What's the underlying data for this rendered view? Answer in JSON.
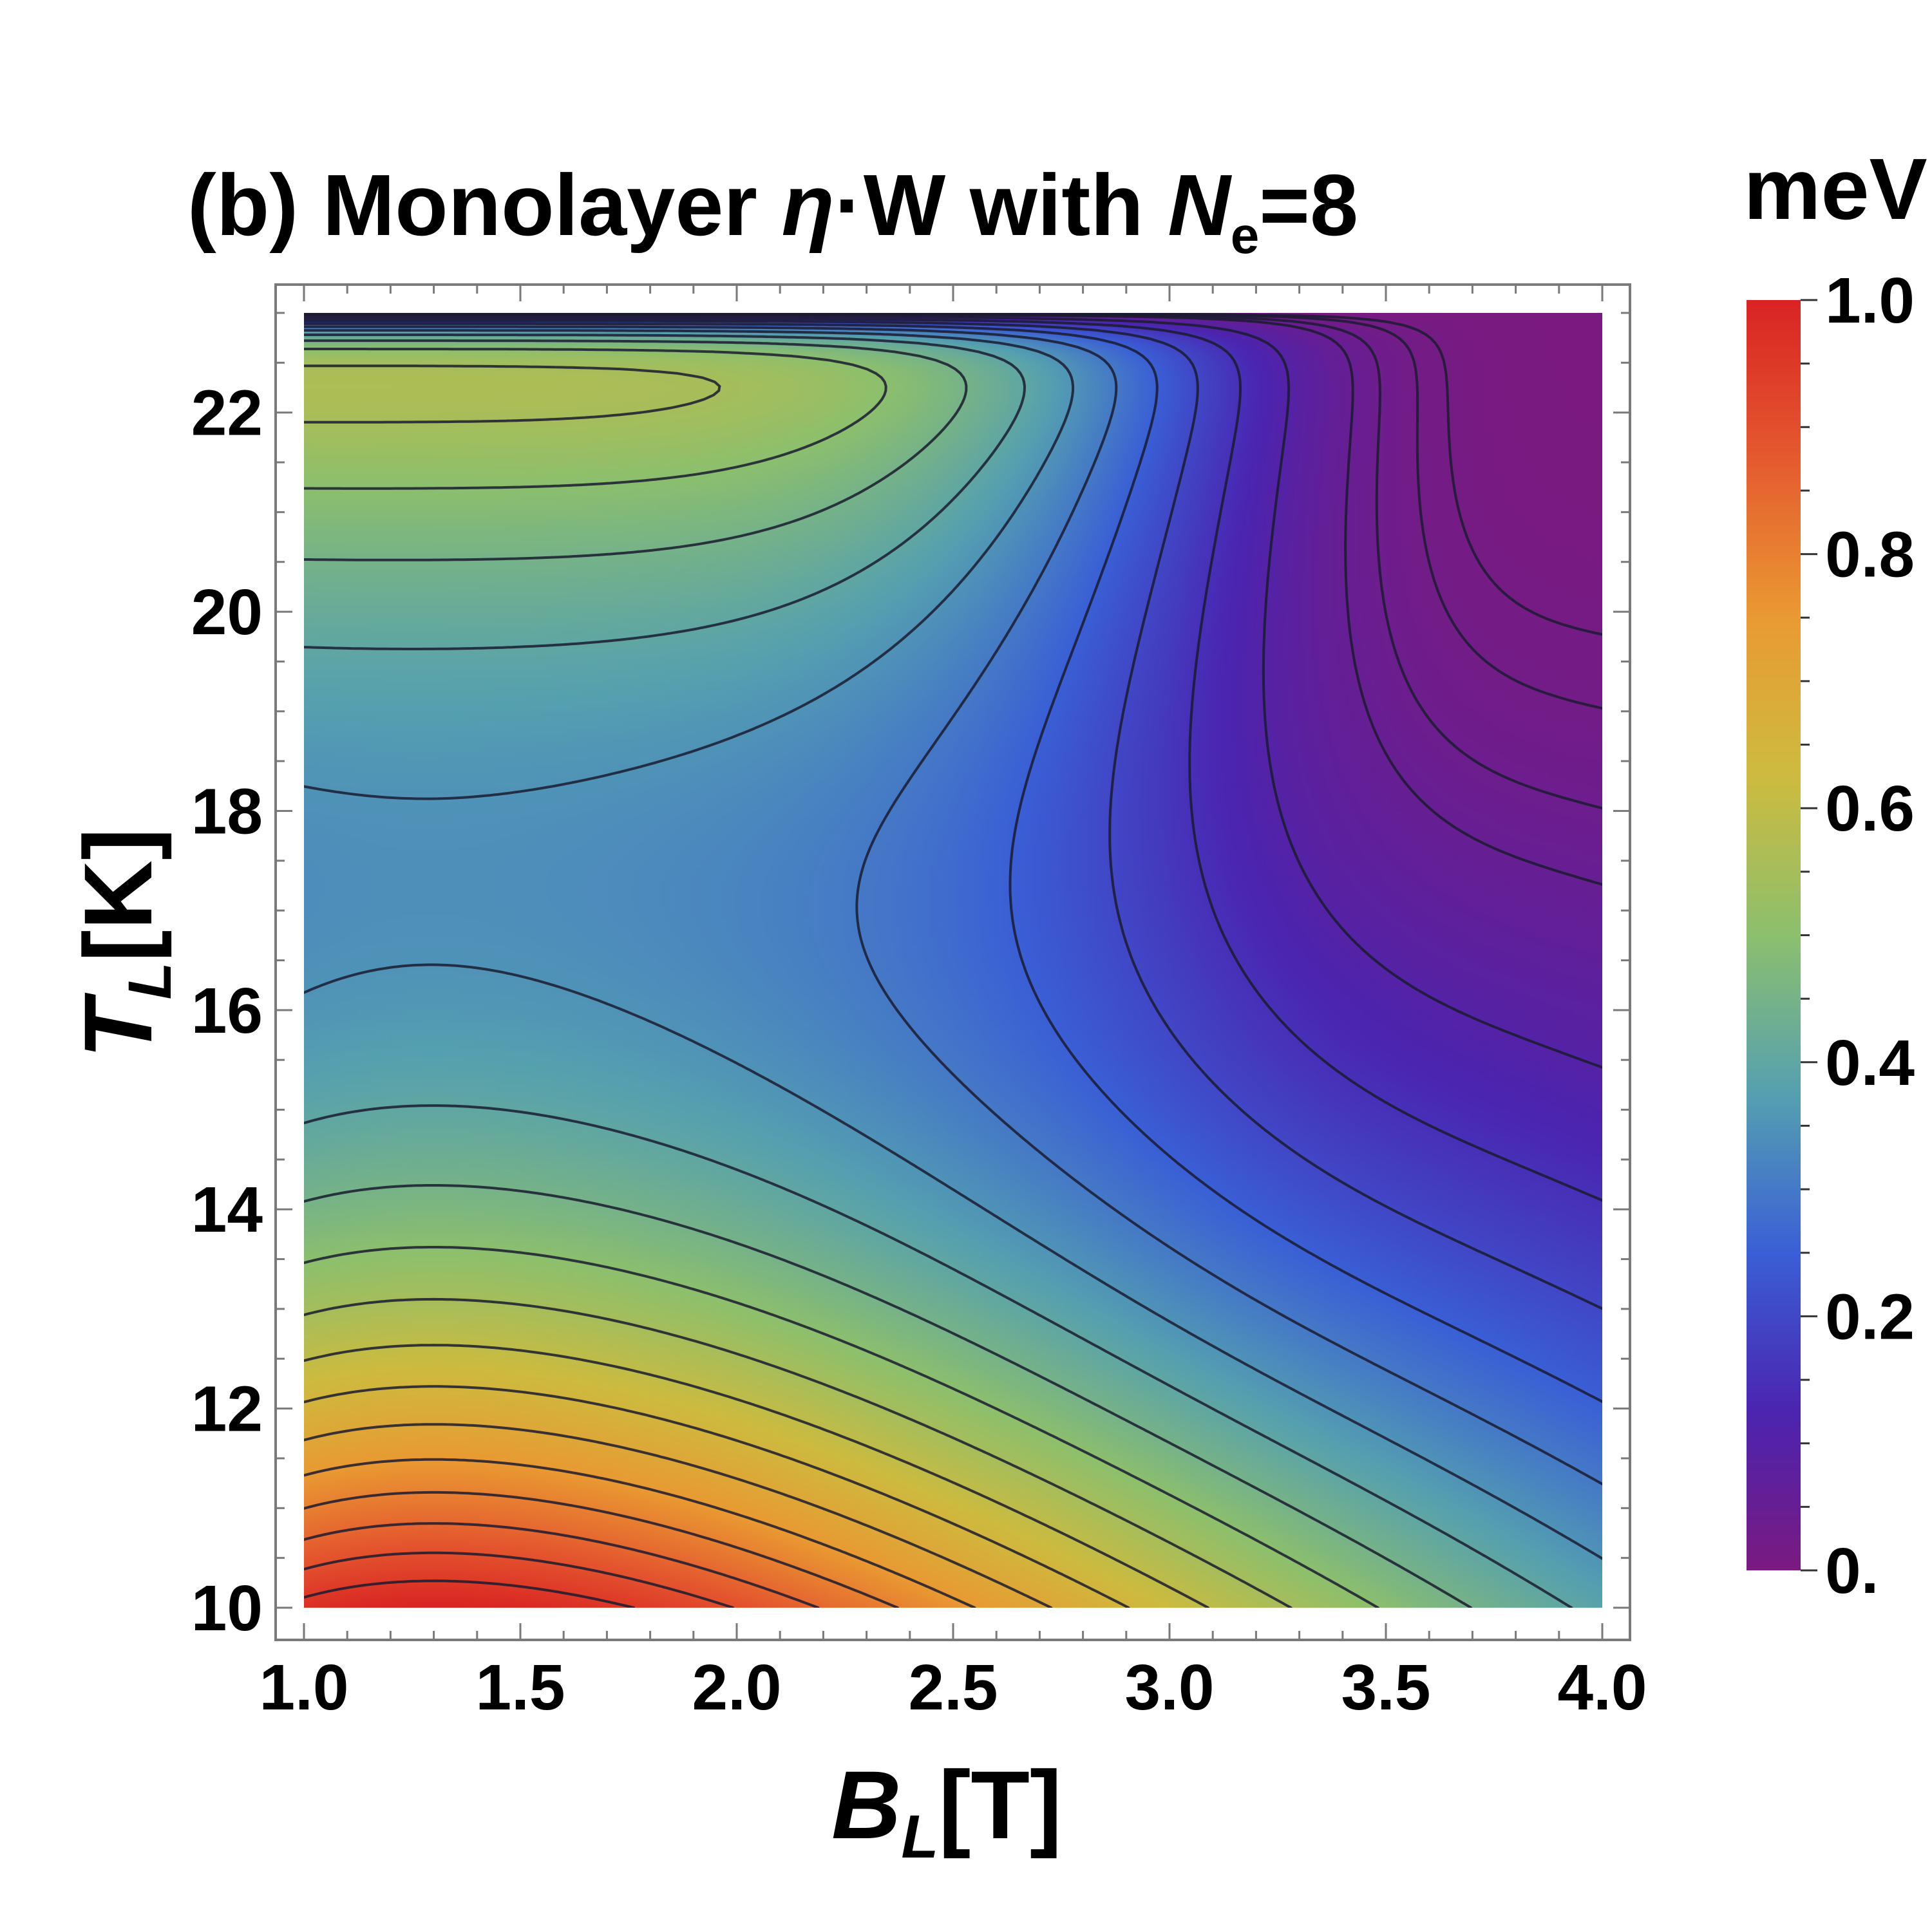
{
  "chart_data": {
    "type": "contour",
    "title": {
      "prefix": "(b) Monolayer ",
      "eta": "η",
      "mid": "·W with ",
      "n": "N",
      "n_sub": "e",
      "suffix": "=8"
    },
    "xlabel": {
      "main": "B",
      "sub": "L",
      "unit": "[T]"
    },
    "ylabel": {
      "main": "T",
      "sub": "L",
      "unit": "[K]"
    },
    "xlim": [
      1.0,
      4.0
    ],
    "ylim": [
      10,
      23
    ],
    "x_ticks": [
      "1.0",
      "1.5",
      "2.0",
      "2.5",
      "3.0",
      "3.5",
      "4.0"
    ],
    "x_tick_values": [
      1.0,
      1.5,
      2.0,
      2.5,
      3.0,
      3.5,
      4.0
    ],
    "y_ticks": [
      "10",
      "12",
      "14",
      "16",
      "18",
      "20",
      "22"
    ],
    "y_tick_values": [
      10,
      12,
      14,
      16,
      18,
      20,
      22
    ],
    "colorbar": {
      "title": "meV",
      "range": [
        0,
        1.0
      ],
      "ticks": [
        "0.",
        "0.2",
        "0.4",
        "0.6",
        "0.8",
        "1.0"
      ],
      "tick_values": [
        0,
        0.2,
        0.4,
        0.6,
        0.8,
        1.0
      ],
      "colormap": [
        "#7a1a80",
        "#4b24b0",
        "#3a5fd6",
        "#55a0b0",
        "#8cbf6e",
        "#cdbb3f",
        "#e99a32",
        "#e55a2f",
        "#d92323"
      ]
    },
    "peak": {
      "x": 1.3,
      "y": 10.0,
      "value": 1.0
    },
    "contour_levels": [
      0.012,
      0.02,
      0.035,
      0.05,
      0.1,
      0.15,
      0.2,
      0.25,
      0.3,
      0.35,
      0.4,
      0.45,
      0.5,
      0.55,
      0.6,
      0.65,
      0.7,
      0.75,
      0.8,
      0.85,
      0.9,
      0.95
    ],
    "grid": false
  }
}
